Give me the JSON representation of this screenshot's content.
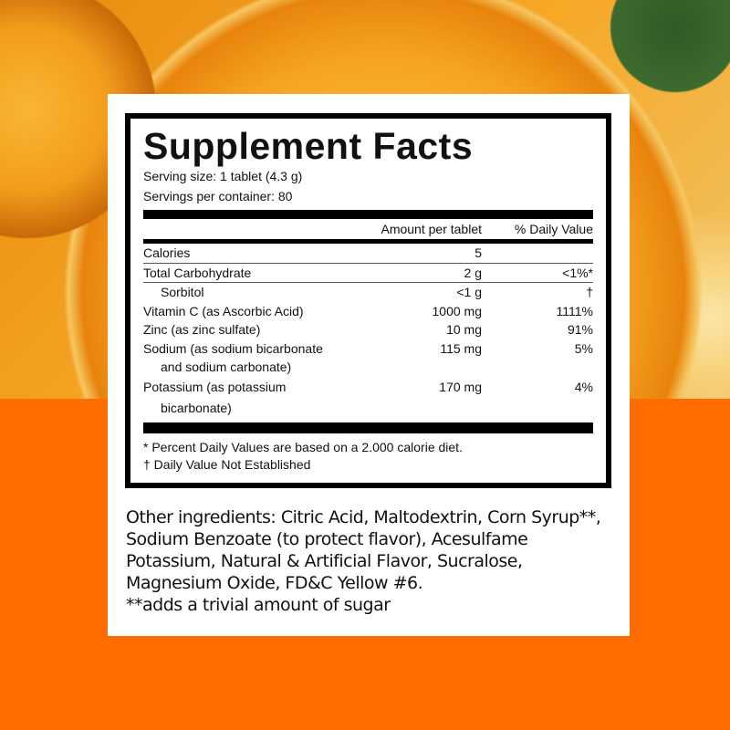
{
  "facts": {
    "title": "Supplement Facts",
    "serving_size": "Serving size: 1 tablet (4.3 g)",
    "servings": "Servings per container: 80",
    "col_amount": "Amount per tablet",
    "col_dv": "% Daily Value",
    "rows": [
      {
        "name": "Calories",
        "amount": "5",
        "dv": ""
      },
      {
        "name": "Total Carbohydrate",
        "amount": "2 g",
        "dv": "<1%*"
      },
      {
        "name": "Sorbitol",
        "amount": "<1 g",
        "dv": "†"
      },
      {
        "name": "Vitamin C (as Ascorbic Acid)",
        "amount": "1000 mg",
        "dv": "1111%"
      },
      {
        "name": "Zinc (as zinc sulfate)",
        "amount": "10 mg",
        "dv": "91%"
      },
      {
        "name": "Sodium (as sodium bicarbonate",
        "name2": "and sodium carbonate)",
        "amount": "115 mg",
        "dv": "5%"
      },
      {
        "name": "Potassium (as potassium",
        "name2": "bicarbonate)",
        "amount": "170 mg",
        "dv": "4%"
      }
    ],
    "footnote1": "* Percent Daily Values are based on a 2.000 calorie diet.",
    "footnote2": "† Daily Value Not Established"
  },
  "other_ingredients": "Other ingredients: Citric Acid, Maltodextrin, Corn Syrup**, Sodium Benzoate (to protect flavor), Acesulfame Potassium, Natural & Artificial Flavor, Sucralose, Magnesium Oxide, FD&C Yellow #6.",
  "sugar_note": "**adds a trivial amount of sugar",
  "colors": {
    "background_orange": "#ff6c00",
    "card": "#ffffff",
    "text": "#111111"
  }
}
